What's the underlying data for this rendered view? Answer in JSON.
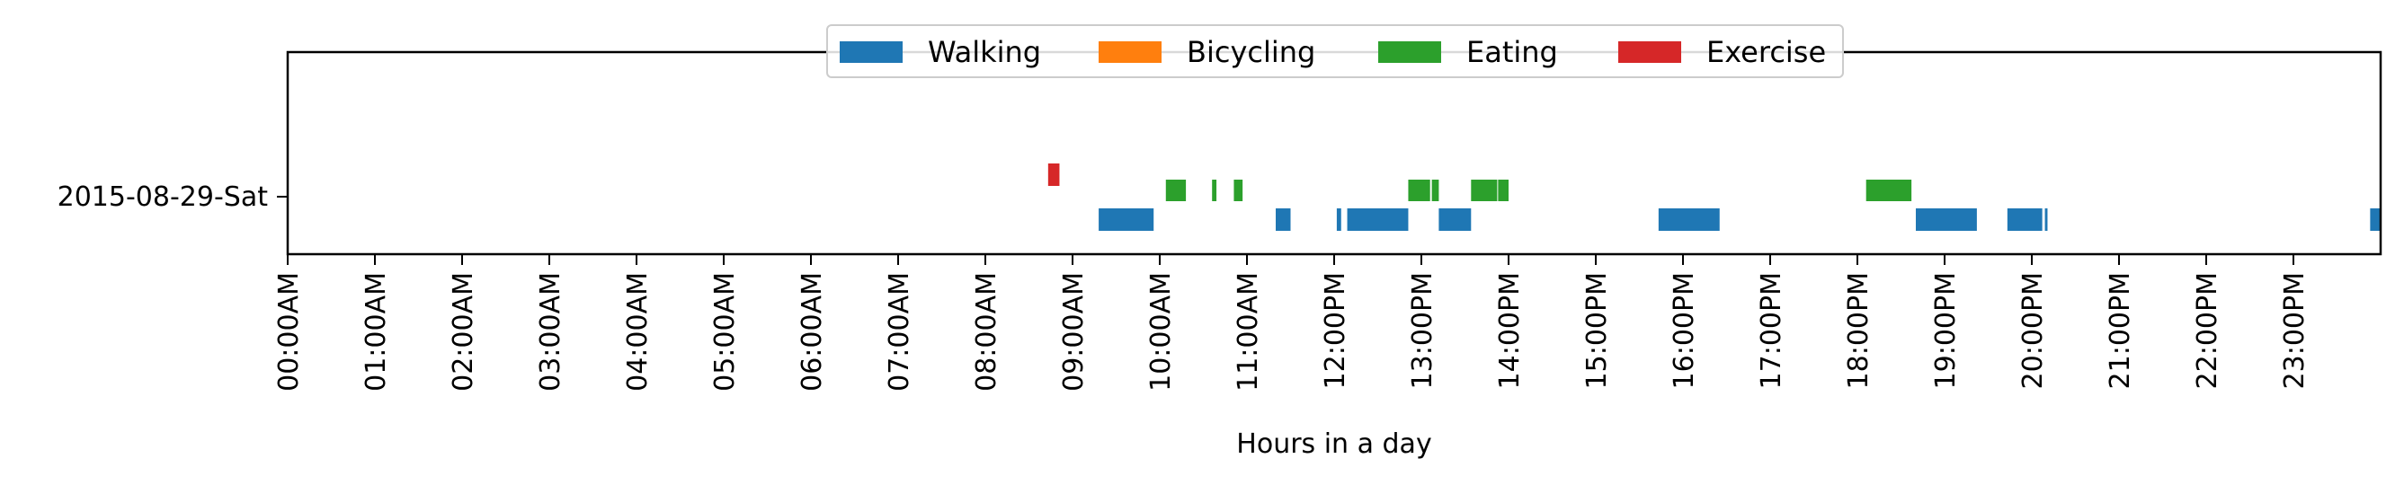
{
  "chart_data": {
    "type": "broken_barh",
    "title": "",
    "xlabel": "Hours in a day",
    "ylabel": "",
    "xlim": [
      0,
      24
    ],
    "x_ticks": [
      0,
      1,
      2,
      3,
      4,
      5,
      6,
      7,
      8,
      9,
      10,
      11,
      12,
      13,
      14,
      15,
      16,
      17,
      18,
      19,
      20,
      21,
      22,
      23
    ],
    "x_tick_labels": [
      "00:00AM",
      "01:00AM",
      "02:00AM",
      "03:00AM",
      "04:00AM",
      "05:00AM",
      "06:00AM",
      "07:00AM",
      "08:00AM",
      "09:00AM",
      "10:00AM",
      "11:00AM",
      "12:00PM",
      "13:00PM",
      "14:00PM",
      "15:00PM",
      "16:00PM",
      "17:00PM",
      "18:00PM",
      "19:00PM",
      "20:00PM",
      "21:00PM",
      "22:00PM",
      "23:00PM"
    ],
    "categories": [
      "2015-08-29-Sat"
    ],
    "legend_position": "top-center",
    "grid": false,
    "series": [
      {
        "name": "Walking",
        "color": "#1f77b4",
        "intervals": [
          [
            9.3,
            9.93
          ],
          [
            11.33,
            11.5
          ],
          [
            12.03,
            12.08
          ],
          [
            12.15,
            12.85
          ],
          [
            13.2,
            13.57
          ],
          [
            15.72,
            16.42
          ],
          [
            18.67,
            19.37
          ],
          [
            19.72,
            20.12
          ],
          [
            20.15,
            20.18
          ],
          [
            23.88,
            24.0
          ]
        ]
      },
      {
        "name": "Bicycling",
        "color": "#ff7f0e",
        "intervals": []
      },
      {
        "name": "Eating",
        "color": "#2ca02c",
        "intervals": [
          [
            10.07,
            10.3
          ],
          [
            10.6,
            10.65
          ],
          [
            10.85,
            10.95
          ],
          [
            12.85,
            13.1
          ],
          [
            13.12,
            13.2
          ],
          [
            13.57,
            13.87
          ],
          [
            13.88,
            14.0
          ],
          [
            18.1,
            18.62
          ]
        ]
      },
      {
        "name": "Exercise",
        "color": "#d62728",
        "intervals": [
          [
            8.72,
            8.85
          ]
        ]
      }
    ]
  }
}
